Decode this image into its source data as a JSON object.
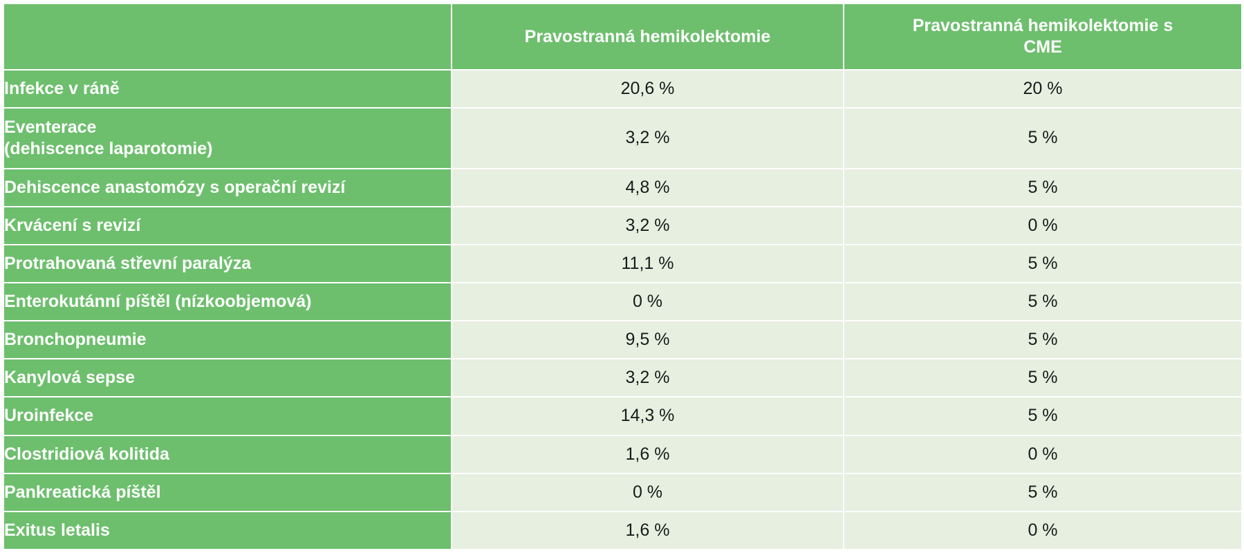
{
  "table": {
    "headers": {
      "label": "",
      "col_a": "Pravostranná hemikolektomie",
      "col_b_line1": "Pravostranná hemikolektomie s",
      "col_b_line2": "CME"
    },
    "rows": [
      {
        "label": "Infekce v ráně",
        "a": "20,6 %",
        "b": "20 %"
      },
      {
        "label_line1": "Eventerace",
        "label_line2": "(dehiscence laparotomie)",
        "a": "3,2 %",
        "b": "5 %"
      },
      {
        "label": "Dehiscence anastomózy s operační revizí",
        "a": "4,8 %",
        "b": "5 %"
      },
      {
        "label": "Krvácení s revizí",
        "a": "3,2 %",
        "b": "0 %"
      },
      {
        "label": "Protrahovaná střevní paralýza",
        "a": "11,1 %",
        "b": "5 %"
      },
      {
        "label": "Enterokutánní píštěl (nízkoobjemová)",
        "a": "0 %",
        "b": "5 %"
      },
      {
        "label": "Bronchopneumie",
        "a": "9,5 %",
        "b": "5 %"
      },
      {
        "label": "Kanylová sepse",
        "a": "3,2 %",
        "b": "5 %"
      },
      {
        "label": "Uroinfekce",
        "a": "14,3 %",
        "b": "5 %"
      },
      {
        "label": "Clostridiová kolitida",
        "a": "1,6 %",
        "b": "0 %"
      },
      {
        "label": "Pankreatická píštěl",
        "a": "0 %",
        "b": "5 %"
      },
      {
        "label": "Exitus letalis",
        "a": "1,6 %",
        "b": "0 %"
      }
    ]
  },
  "colors": {
    "header_green": "#6dbf6d",
    "cell_light": "#e6efe0",
    "border": "#ffffff"
  }
}
